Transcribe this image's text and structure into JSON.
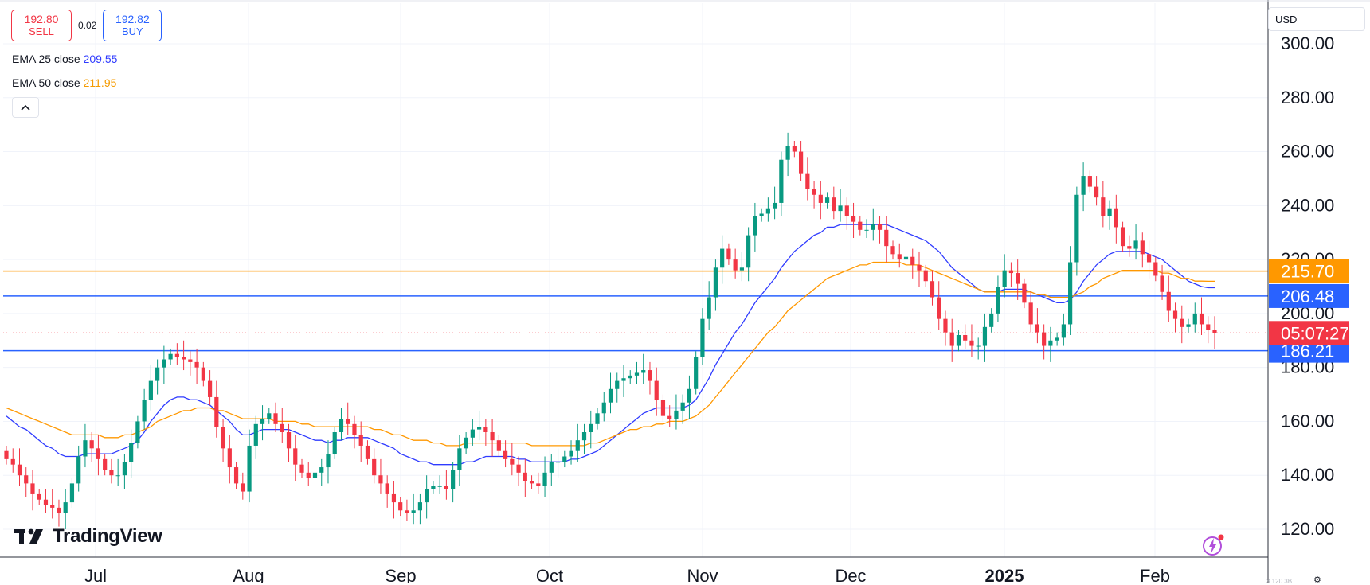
{
  "trade": {
    "sell_price": "192.80",
    "sell_label": "SELL",
    "spread": "0.02",
    "buy_price": "192.82",
    "buy_label": "BUY"
  },
  "indicators": [
    {
      "label": "EMA 25 close",
      "value": "209.55",
      "color": "#2f3bff"
    },
    {
      "label": "EMA 50 close",
      "value": "211.95",
      "color": "#ff9800"
    }
  ],
  "currency": "USD",
  "branding": "TradingView",
  "countdown_partial": "3 120 3B",
  "colors": {
    "up": "#089981",
    "down": "#f23645",
    "grid": "#f0f3fa",
    "axis": "#131722"
  },
  "chart_data": {
    "type": "candlestick",
    "y_ticks": [
      "300.00",
      "280.00",
      "260.00",
      "240.00",
      "220.00",
      "200.00",
      "180.00",
      "160.00",
      "140.00",
      "120.00"
    ],
    "x_labels": [
      "Jul",
      "Aug",
      "Sep",
      "Oct",
      "Nov",
      "Dec",
      "2025",
      "Feb"
    ],
    "ylim": [
      108,
      306
    ],
    "horizontal_lines": [
      {
        "price": 215.7,
        "label": "215.70",
        "color": "#ff9800"
      },
      {
        "price": 206.48,
        "label": "206.48",
        "color": "#2962ff"
      },
      {
        "price": 186.21,
        "label": "186.21",
        "color": "#2962ff"
      }
    ],
    "current_price": {
      "price": 192.8,
      "label": "05:07:27",
      "color": "#f23645"
    },
    "series": [
      {
        "name": "price",
        "closes": [
          146,
          144,
          140,
          137,
          133,
          131,
          129,
          128,
          126,
          130,
          137,
          147,
          153,
          150,
          146,
          142,
          140,
          140,
          145,
          152,
          160,
          168,
          175,
          180,
          183,
          185,
          184,
          183,
          182,
          180,
          175,
          169,
          158,
          150,
          143,
          137,
          134,
          151,
          159,
          161,
          163,
          159,
          156,
          150,
          144,
          141,
          139,
          141,
          143,
          148,
          156,
          161,
          159,
          155,
          151,
          146,
          140,
          137,
          133,
          130,
          127,
          126,
          127,
          130,
          135,
          136,
          136,
          135,
          142,
          150,
          154,
          157,
          158,
          156,
          153,
          149,
          146,
          144,
          141,
          138,
          137,
          136,
          141,
          145,
          145,
          147,
          149,
          153,
          156,
          159,
          163,
          167,
          172,
          175,
          176,
          177,
          178,
          179,
          175,
          168,
          162,
          161,
          164,
          167,
          172,
          184,
          198,
          206,
          217,
          224,
          220,
          216,
          217,
          229,
          236,
          237,
          239,
          241,
          257,
          262,
          260,
          252,
          246,
          244,
          241,
          243,
          238,
          240,
          236,
          234,
          231,
          231,
          233,
          231,
          225,
          222,
          220,
          221,
          218,
          216,
          212,
          206,
          198,
          193,
          188,
          192,
          190,
          188,
          188,
          195,
          200,
          210,
          216,
          215,
          211,
          204,
          196,
          193,
          188,
          190,
          191,
          196,
          219,
          244,
          251,
          247,
          243,
          236,
          239,
          232,
          225,
          224,
          227,
          222,
          219,
          214,
          208,
          201,
          198,
          195,
          196,
          200,
          196,
          194,
          192.8
        ]
      },
      {
        "name": "EMA 25",
        "values": [
          162,
          160,
          158,
          157,
          155,
          153,
          151,
          150,
          148,
          147,
          147,
          147,
          148,
          148,
          148,
          148,
          148,
          149,
          150,
          151,
          153,
          156,
          160,
          163,
          166,
          168,
          169,
          169,
          168,
          168,
          167,
          166,
          164,
          162,
          160,
          157,
          155,
          155,
          156,
          157,
          157,
          157,
          157,
          157,
          156,
          155,
          154,
          153,
          153,
          152,
          153,
          153,
          154,
          154,
          154,
          154,
          153,
          152,
          151,
          150,
          148,
          147,
          146,
          145,
          145,
          144,
          144,
          144,
          144,
          144,
          145,
          145,
          146,
          147,
          147,
          147,
          147,
          147,
          146,
          146,
          145,
          145,
          145,
          145,
          145,
          145,
          146,
          146,
          147,
          148,
          149,
          151,
          153,
          155,
          157,
          159,
          161,
          163,
          164,
          165,
          165,
          165,
          165,
          165,
          166,
          168,
          172,
          176,
          181,
          185,
          189,
          193,
          196,
          200,
          204,
          207,
          210,
          213,
          217,
          220,
          223,
          225,
          227,
          229,
          230,
          232,
          232,
          233,
          233,
          233,
          233,
          233,
          233,
          233,
          233,
          232,
          231,
          230,
          229,
          228,
          227,
          225,
          223,
          220,
          217,
          215,
          213,
          211,
          209,
          208,
          208,
          208,
          209,
          209,
          209,
          209,
          208,
          207,
          206,
          205,
          204,
          204,
          205,
          208,
          212,
          215,
          218,
          220,
          222,
          223,
          223,
          223,
          223,
          223,
          222,
          221,
          220,
          218,
          216,
          214,
          212,
          211,
          210,
          209.55,
          209.55
        ]
      },
      {
        "name": "EMA 50",
        "values": [
          165,
          164,
          163,
          162,
          161,
          160,
          159,
          158,
          157,
          156,
          155,
          155,
          155,
          155,
          155,
          154,
          154,
          154,
          155,
          155,
          156,
          157,
          158,
          160,
          161,
          162,
          163,
          164,
          164,
          165,
          165,
          165,
          164,
          164,
          163,
          162,
          161,
          161,
          161,
          161,
          161,
          160,
          160,
          160,
          160,
          159,
          159,
          158,
          158,
          158,
          158,
          158,
          158,
          158,
          158,
          158,
          157,
          157,
          156,
          155,
          155,
          154,
          153,
          153,
          153,
          152,
          152,
          151,
          151,
          151,
          152,
          152,
          152,
          152,
          152,
          152,
          152,
          152,
          152,
          152,
          151,
          151,
          151,
          151,
          151,
          151,
          151,
          151,
          151,
          152,
          152,
          153,
          154,
          155,
          156,
          157,
          157,
          158,
          158,
          159,
          159,
          160,
          160,
          160,
          161,
          162,
          164,
          166,
          169,
          172,
          175,
          178,
          181,
          184,
          187,
          190,
          193,
          195,
          198,
          201,
          203,
          205,
          207,
          209,
          211,
          213,
          214,
          215,
          216,
          217,
          218,
          218,
          219,
          219,
          219,
          219,
          219,
          218,
          218,
          218,
          217,
          216,
          215,
          214,
          213,
          212,
          211,
          210,
          209,
          208,
          208,
          208,
          208,
          208,
          208,
          208,
          208,
          207,
          207,
          206,
          206,
          206,
          206,
          207,
          208,
          210,
          211,
          213,
          214,
          215,
          216,
          216,
          216,
          216,
          216,
          216,
          215,
          215,
          214,
          213,
          213,
          212,
          212,
          211.95,
          211.95
        ]
      }
    ]
  }
}
